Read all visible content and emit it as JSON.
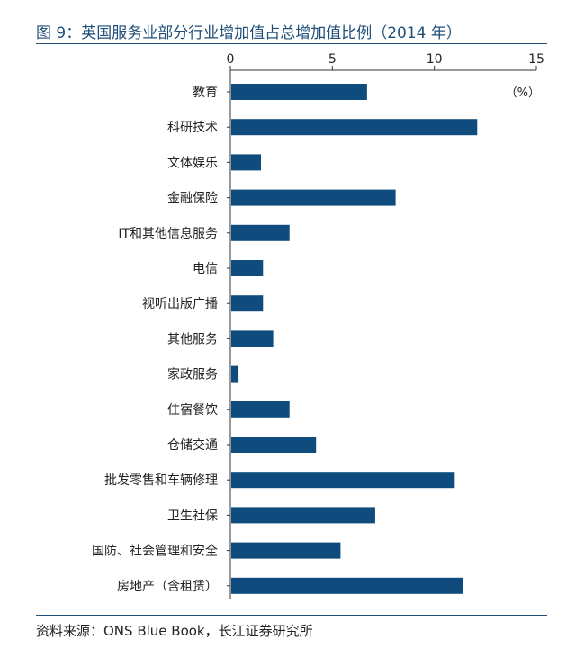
{
  "title": "图 9：英国服务业部分行业增加值占总增加值比例（2014 年）",
  "source": "资料来源：ONS Blue Book，长江证券研究所",
  "chart_data": {
    "type": "bar",
    "orientation": "horizontal",
    "title": "英国服务业部分行业增加值占总增加值比例（2014 年）",
    "unit": "（%）",
    "xlim": [
      0,
      15
    ],
    "xticks": [
      "0",
      "5",
      "10",
      "15"
    ],
    "xaxis_position": "top",
    "bar_color": "#0f4c7d",
    "categories": [
      "教育",
      "科研技术",
      "文体娱乐",
      "金融保险",
      "IT和其他信息服务",
      "电信",
      "视听出版广播",
      "其他服务",
      "家政服务",
      "住宿餐饮",
      "仓储交通",
      "批发零售和车辆修理",
      "卫生社保",
      "国防、社会管理和安全",
      "房地产（含租赁）"
    ],
    "values": [
      6.7,
      12.1,
      1.5,
      8.1,
      2.9,
      1.6,
      1.6,
      2.1,
      0.4,
      2.9,
      4.2,
      11.0,
      7.1,
      5.4,
      11.4
    ]
  }
}
